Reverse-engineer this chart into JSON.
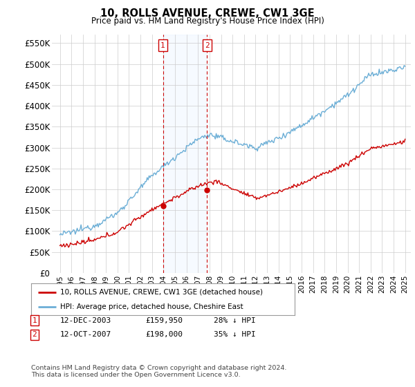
{
  "title": "10, ROLLS AVENUE, CREWE, CW1 3GE",
  "subtitle": "Price paid vs. HM Land Registry's House Price Index (HPI)",
  "ylabel_ticks": [
    "£0",
    "£50K",
    "£100K",
    "£150K",
    "£200K",
    "£250K",
    "£300K",
    "£350K",
    "£400K",
    "£450K",
    "£500K",
    "£550K"
  ],
  "ytick_values": [
    0,
    50000,
    100000,
    150000,
    200000,
    250000,
    300000,
    350000,
    400000,
    450000,
    500000,
    550000
  ],
  "ylim": [
    0,
    570000
  ],
  "hpi_color": "#6baed6",
  "price_color": "#cc0000",
  "sale1_date_label": "12-DEC-2003",
  "sale1_price": 159950,
  "sale1_hpi_diff": "28% ↓ HPI",
  "sale2_date_label": "12-OCT-2007",
  "sale2_price": 198000,
  "sale2_hpi_diff": "35% ↓ HPI",
  "sale1_x": 2003.95,
  "sale2_x": 2007.79,
  "legend_label1": "10, ROLLS AVENUE, CREWE, CW1 3GE (detached house)",
  "legend_label2": "HPI: Average price, detached house, Cheshire East",
  "footnote": "Contains HM Land Registry data © Crown copyright and database right 2024.\nThis data is licensed under the Open Government Licence v3.0.",
  "background_color": "#ffffff",
  "grid_color": "#cccccc",
  "span_color": "#ddeeff"
}
